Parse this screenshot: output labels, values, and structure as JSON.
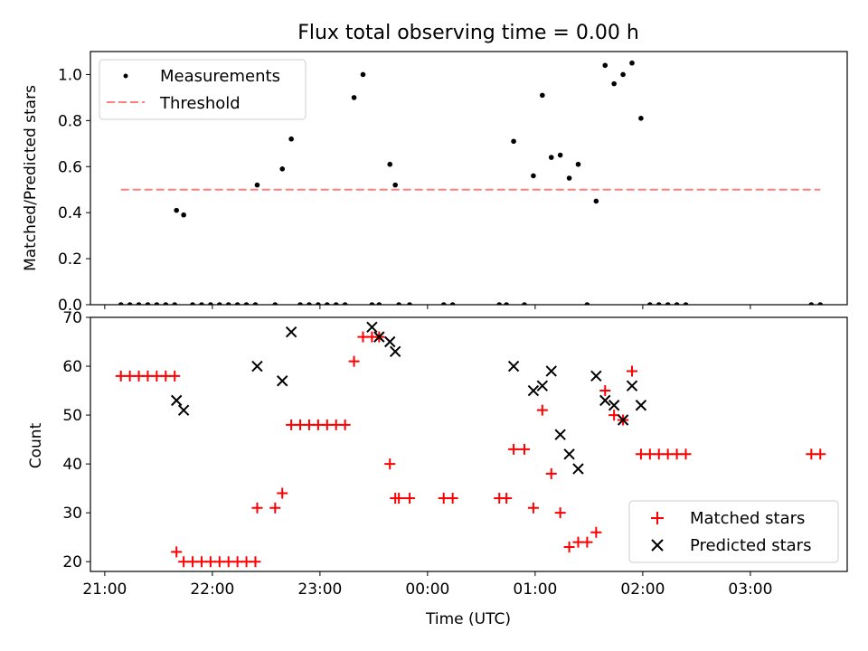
{
  "figure": {
    "title": "Flux total observing time = 0.00 h"
  },
  "chart_data": [
    {
      "type": "scatter",
      "panel": "top",
      "ylabel": "Matched/Predicted stars",
      "xlabel": "",
      "ylim": [
        0,
        1.1
      ],
      "yticks": [
        0.0,
        0.2,
        0.4,
        0.6,
        0.8,
        1.0
      ],
      "ytick_labels": [
        "0.0",
        "0.2",
        "0.4",
        "0.6",
        "0.8",
        "1.0"
      ],
      "xlim": [
        "20:52",
        "03:54"
      ],
      "xticks": [
        "21:00",
        "22:00",
        "23:00",
        "00:00",
        "01:00",
        "02:00",
        "03:00"
      ],
      "legend_position": "upper-left",
      "grid": false,
      "series": [
        {
          "name": "Measurements",
          "marker": "dot",
          "color": "#000000",
          "x": [
            "21:09",
            "21:14",
            "21:19",
            "21:24",
            "21:29",
            "21:34",
            "21:39",
            "21:40",
            "21:44",
            "21:49",
            "21:54",
            "21:59",
            "22:04",
            "22:09",
            "22:14",
            "22:19",
            "22:24",
            "22:25",
            "22:35",
            "22:39",
            "22:44",
            "22:49",
            "22:54",
            "22:59",
            "23:04",
            "23:09",
            "23:14",
            "23:19",
            "23:24",
            "23:29",
            "23:33",
            "23:39",
            "23:42",
            "23:44",
            "23:50",
            "24:09",
            "24:14",
            "24:40",
            "24:44",
            "24:48",
            "24:54",
            "24:59",
            "25:04",
            "25:09",
            "25:14",
            "25:19",
            "25:24",
            "25:29",
            "25:34",
            "25:39",
            "25:44",
            "25:49",
            "25:54",
            "25:59",
            "26:04",
            "26:09",
            "26:14",
            "26:19",
            "26:24",
            "27:34",
            "27:39"
          ],
          "y": [
            0,
            0,
            0,
            0,
            0,
            0,
            0,
            0.41,
            0.39,
            0,
            0,
            0,
            0,
            0,
            0,
            0,
            0,
            0.52,
            0,
            0.59,
            0.72,
            0,
            0,
            0,
            0,
            0,
            0,
            0.9,
            1.0,
            0,
            0,
            0.61,
            0.52,
            0,
            0,
            0,
            0,
            0,
            0,
            0.71,
            0,
            0.56,
            0.91,
            0.64,
            0.65,
            0.55,
            0.61,
            0,
            0.45,
            1.04,
            0.96,
            1.0,
            1.05,
            0.81,
            0,
            0,
            0,
            0,
            0,
            0,
            0
          ]
        },
        {
          "name": "Threshold",
          "style": "dashed",
          "color": "#ff7f7f",
          "x": [
            "21:09",
            "27:39"
          ],
          "y": [
            0.5,
            0.5
          ]
        }
      ]
    },
    {
      "type": "scatter",
      "panel": "bottom",
      "ylabel": "Count",
      "xlabel": "Time (UTC)",
      "ylim": [
        18,
        70
      ],
      "yticks": [
        20,
        30,
        40,
        50,
        60,
        70
      ],
      "ytick_labels": [
        "20",
        "30",
        "40",
        "50",
        "60",
        "70"
      ],
      "xlim": [
        "20:52",
        "03:54"
      ],
      "xticks": [
        "21:00",
        "22:00",
        "23:00",
        "00:00",
        "01:00",
        "02:00",
        "03:00"
      ],
      "xtick_labels": [
        "21:00",
        "22:00",
        "23:00",
        "00:00",
        "01:00",
        "02:00",
        "03:00"
      ],
      "legend_position": "lower-right",
      "grid": false,
      "series": [
        {
          "name": "Matched stars",
          "marker": "plus",
          "color": "#ff0000",
          "x": [
            "21:09",
            "21:14",
            "21:19",
            "21:24",
            "21:29",
            "21:34",
            "21:39",
            "21:40",
            "21:44",
            "21:49",
            "21:54",
            "21:59",
            "22:04",
            "22:09",
            "22:14",
            "22:19",
            "22:24",
            "22:25",
            "22:35",
            "22:39",
            "22:44",
            "22:49",
            "22:54",
            "22:59",
            "23:04",
            "23:09",
            "23:14",
            "23:19",
            "23:24",
            "23:29",
            "23:33",
            "23:39",
            "23:42",
            "23:44",
            "23:50",
            "24:09",
            "24:14",
            "24:40",
            "24:44",
            "24:48",
            "24:54",
            "24:59",
            "25:04",
            "25:09",
            "25:14",
            "25:19",
            "25:24",
            "25:29",
            "25:34",
            "25:39",
            "25:44",
            "25:49",
            "25:54",
            "25:59",
            "26:04",
            "26:09",
            "26:14",
            "26:19",
            "26:24",
            "27:34",
            "27:39"
          ],
          "y": [
            58,
            58,
            58,
            58,
            58,
            58,
            58,
            22,
            20,
            20,
            20,
            20,
            20,
            20,
            20,
            20,
            20,
            31,
            31,
            34,
            48,
            48,
            48,
            48,
            48,
            48,
            48,
            61,
            66,
            66,
            66,
            40,
            33,
            33,
            33,
            33,
            33,
            33,
            33,
            43,
            43,
            31,
            51,
            38,
            30,
            23,
            24,
            24,
            26,
            55,
            50,
            49,
            59,
            42,
            42,
            42,
            42,
            42,
            42,
            42,
            42
          ]
        },
        {
          "name": "Predicted stars",
          "marker": "x",
          "color": "#000000",
          "x": [
            "21:40",
            "21:44",
            "22:25",
            "22:39",
            "22:44",
            "23:29",
            "23:33",
            "23:39",
            "23:42",
            "24:48",
            "24:59",
            "25:04",
            "25:09",
            "25:14",
            "25:19",
            "25:24",
            "25:34",
            "25:39",
            "25:44",
            "25:49",
            "25:54",
            "25:59"
          ],
          "y": [
            53,
            51,
            60,
            57,
            67,
            68,
            66,
            65,
            63,
            60,
            55,
            56,
            59,
            46,
            42,
            39,
            58,
            53,
            52,
            49,
            56,
            52
          ]
        }
      ]
    }
  ]
}
